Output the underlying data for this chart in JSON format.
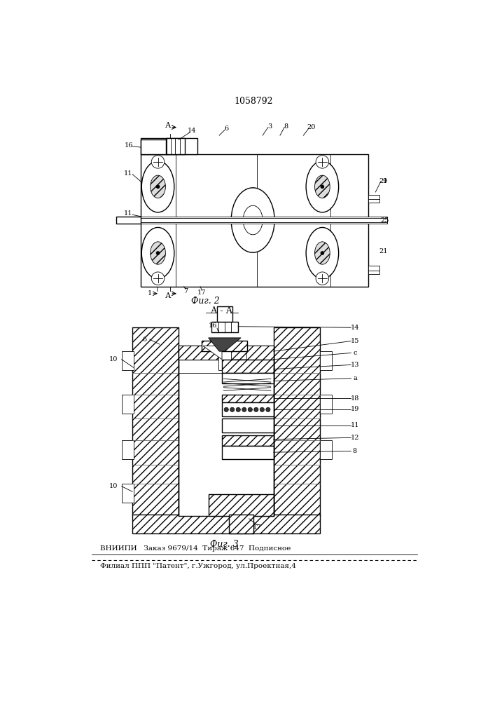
{
  "patent_number": "1058792",
  "fig2_label": "Фиг. 2",
  "fig3_label": "Фиг. 3",
  "section_label": "А - А",
  "footer_line1": "ВНИИПИ   Заказ 9679/14  Тираж 647  Подписное",
  "footer_line2": "Филиал ППП \"Патент\", г.Ужгород, ул.Проектная,4",
  "bg_color": "#ffffff"
}
